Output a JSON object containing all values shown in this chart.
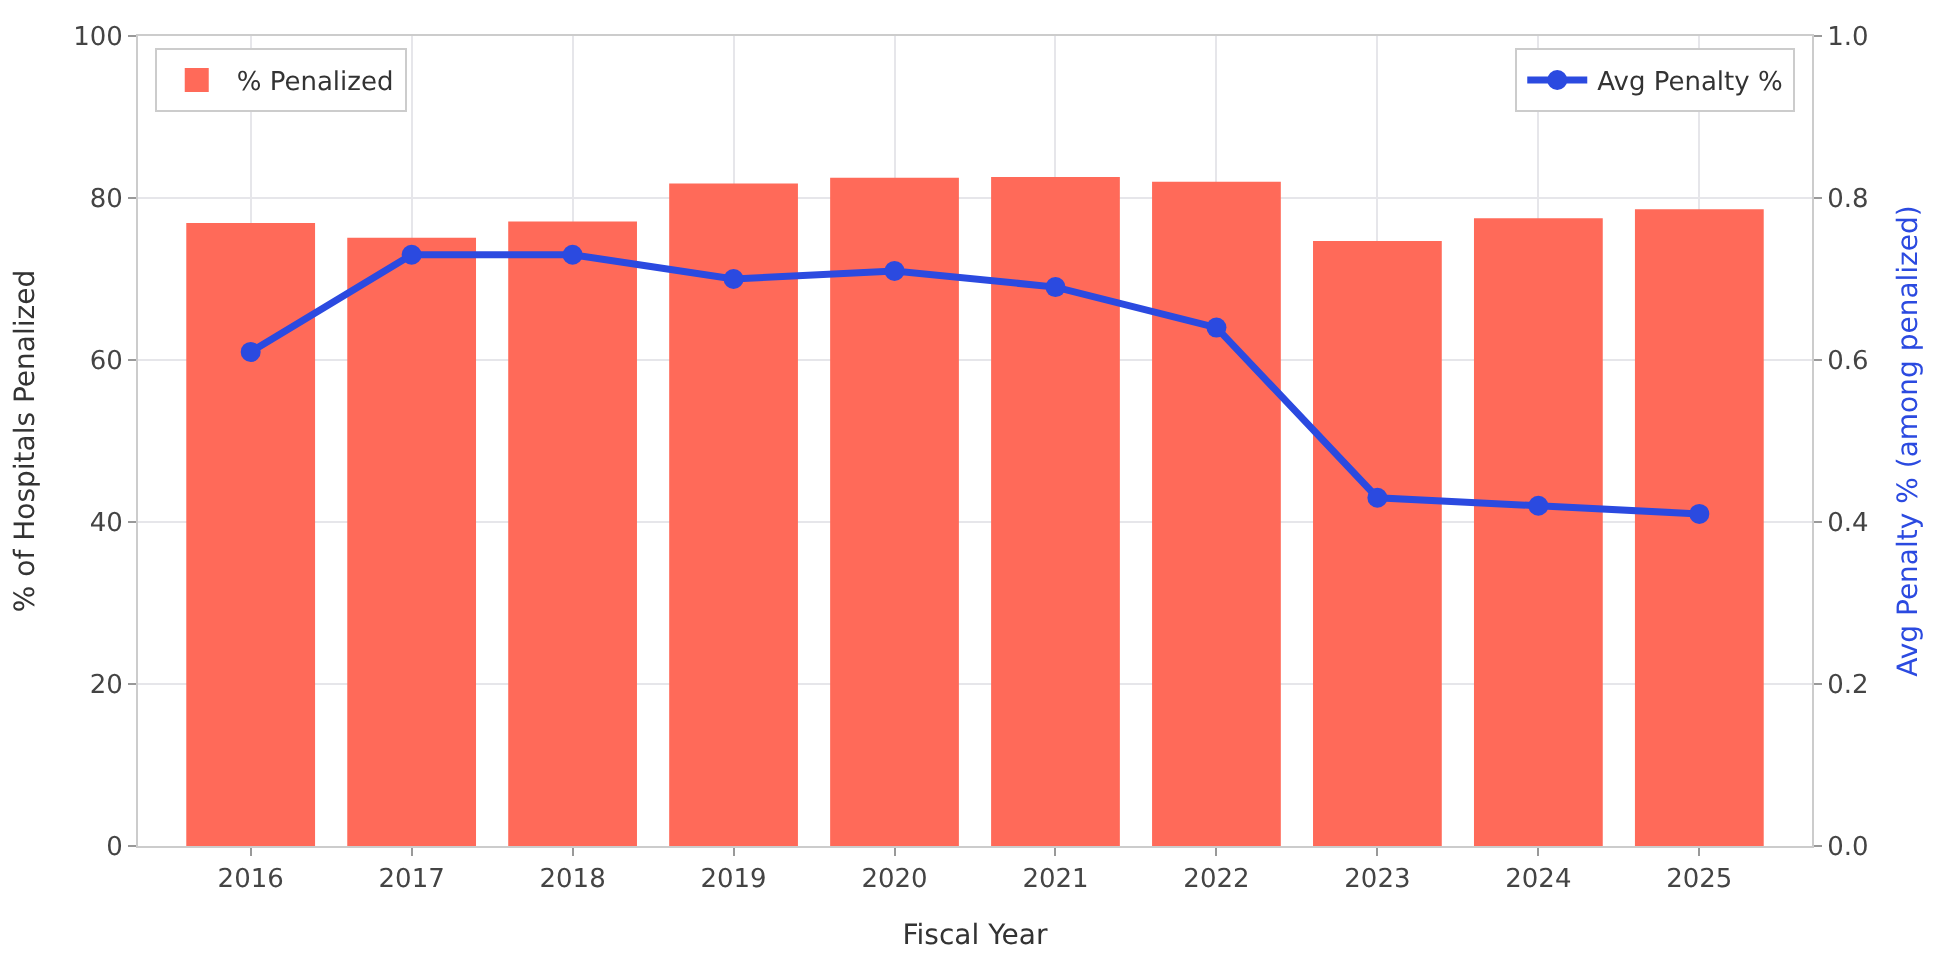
{
  "chart_data": {
    "type": "bar",
    "categories": [
      "2016",
      "2017",
      "2018",
      "2019",
      "2020",
      "2021",
      "2022",
      "2023",
      "2024",
      "2025"
    ],
    "series": [
      {
        "name": "% Penalized",
        "color": "#ff6a59",
        "values": [
          76.9,
          75.1,
          77.1,
          81.8,
          82.5,
          82.6,
          82.0,
          74.7,
          77.5,
          78.6
        ]
      },
      {
        "name": "Avg Penalty %",
        "type": "line",
        "axis": "y2",
        "color": "#2b4ae0",
        "values": [
          0.61,
          0.73,
          0.73,
          0.7,
          0.71,
          0.69,
          0.64,
          0.43,
          0.42,
          0.41
        ]
      }
    ],
    "xlabel": "Fiscal Year",
    "ylabel": "% of Hospitals Penalized",
    "y2label": "Avg Penalty % (among penalized)",
    "ylim": [
      0,
      100
    ],
    "yticks": [
      0,
      20,
      40,
      60,
      80,
      100
    ],
    "y2lim": [
      0,
      1
    ],
    "y2ticks": [
      {
        "value": 0,
        "label": "0.0"
      },
      {
        "value": 0.2,
        "label": "0.2"
      },
      {
        "value": 0.4,
        "label": "0.4"
      },
      {
        "value": 0.6,
        "label": "0.6"
      },
      {
        "value": 0.8,
        "label": "0.8"
      },
      {
        "value": 1,
        "label": "1.0"
      }
    ],
    "grid": true,
    "legend": "top",
    "marker": "circle",
    "line_style": "solid"
  }
}
